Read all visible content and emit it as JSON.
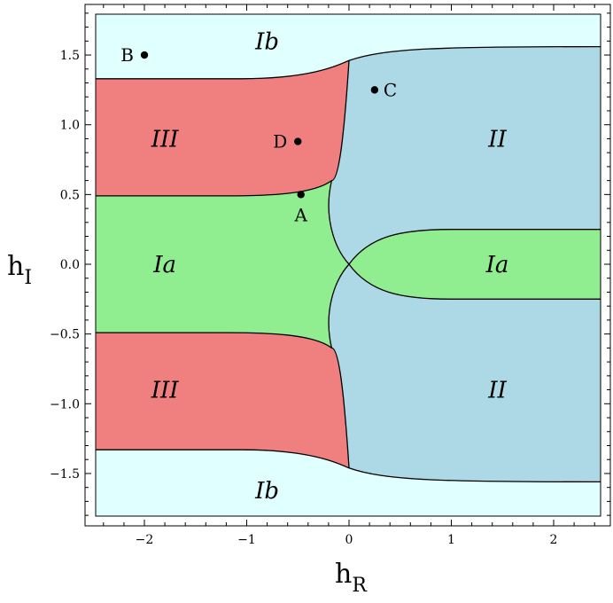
{
  "chart_data": {
    "type": "region_map",
    "xlabel": "h",
    "xlabel_subscript": "R",
    "ylabel": "h",
    "ylabel_subscript": "I",
    "xlim": [
      -2.55,
      2.55
    ],
    "ylim": [
      -1.82,
      1.82
    ],
    "x_ticks": [
      {
        "value": -2,
        "label": "−2"
      },
      {
        "value": -1,
        "label": "−1"
      },
      {
        "value": 0,
        "label": "0"
      },
      {
        "value": 1,
        "label": "1"
      },
      {
        "value": 2,
        "label": "2"
      }
    ],
    "y_ticks": [
      {
        "value": 1.5,
        "label": "1.5"
      },
      {
        "value": 1.0,
        "label": "1.0"
      },
      {
        "value": 0.5,
        "label": "0.5"
      },
      {
        "value": 0.0,
        "label": "0.0"
      },
      {
        "value": -0.5,
        "label": "−0.5"
      },
      {
        "value": -1.0,
        "label": "−1.0"
      },
      {
        "value": -1.5,
        "label": "−1.5"
      }
    ],
    "region_colors": {
      "Ia": "#90ee90",
      "Ib": "#e0ffff",
      "II": "#add8e6",
      "III": "#f08080"
    },
    "region_labels": [
      {
        "name": "Ib",
        "x": -0.8,
        "y": 1.6
      },
      {
        "name": "III",
        "x": -1.8,
        "y": 0.9
      },
      {
        "name": "II",
        "x": 1.45,
        "y": 0.9
      },
      {
        "name": "Ia",
        "x": -1.8,
        "y": 0.0
      },
      {
        "name": "Ia",
        "x": 1.45,
        "y": 0.0
      },
      {
        "name": "III",
        "x": -1.8,
        "y": -0.9
      },
      {
        "name": "II",
        "x": 1.45,
        "y": -0.9
      },
      {
        "name": "Ib",
        "x": -0.8,
        "y": -1.62
      }
    ],
    "points": [
      {
        "name": "A",
        "x": -0.47,
        "y": 0.5
      },
      {
        "name": "B",
        "x": -2.0,
        "y": 1.5
      },
      {
        "name": "C",
        "x": 0.25,
        "y": 1.25
      },
      {
        "name": "D",
        "x": -0.5,
        "y": 0.88
      }
    ]
  }
}
